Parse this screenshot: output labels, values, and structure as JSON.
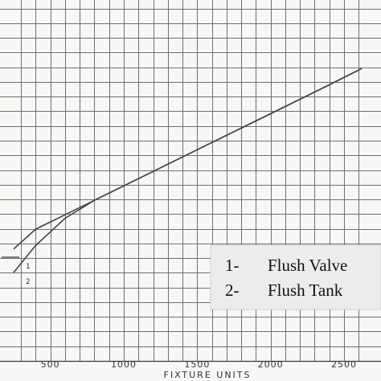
{
  "chart_data": {
    "type": "line",
    "xlabel": "FIXTURE UNITS",
    "xlim": [
      250,
      2620
    ],
    "ylim": [
      0,
      1
    ],
    "x_ticks": [
      500,
      1000,
      1500,
      2000,
      2500
    ],
    "grid": true,
    "series": [
      {
        "name": "Flush Valve",
        "tag": "1",
        "x": [
          250,
          400,
          600,
          800,
          1000,
          1200,
          1500,
          1800,
          2100,
          2400,
          2620
        ],
        "y": [
          0.31,
          0.365,
          0.405,
          0.445,
          0.485,
          0.525,
          0.585,
          0.645,
          0.705,
          0.765,
          0.81
        ]
      },
      {
        "name": "Flush Tank",
        "tag": "2",
        "x": [
          250,
          400,
          600,
          800,
          1000,
          1200,
          1500,
          1800,
          2100,
          2400,
          2620
        ],
        "y": [
          0.245,
          0.32,
          0.395,
          0.445,
          0.485,
          0.525,
          0.585,
          0.645,
          0.705,
          0.765,
          0.81
        ]
      }
    ],
    "legend": {
      "placement": "bottom-right",
      "entries": [
        {
          "number": "1-",
          "label": "Flush Valve"
        },
        {
          "number": "2-",
          "label": "Flush Tank"
        }
      ]
    }
  },
  "colors": {
    "background": "#f7f7f5",
    "grid": "#6f6f6f",
    "curve": "#444444",
    "legend_background": "#ececea"
  }
}
